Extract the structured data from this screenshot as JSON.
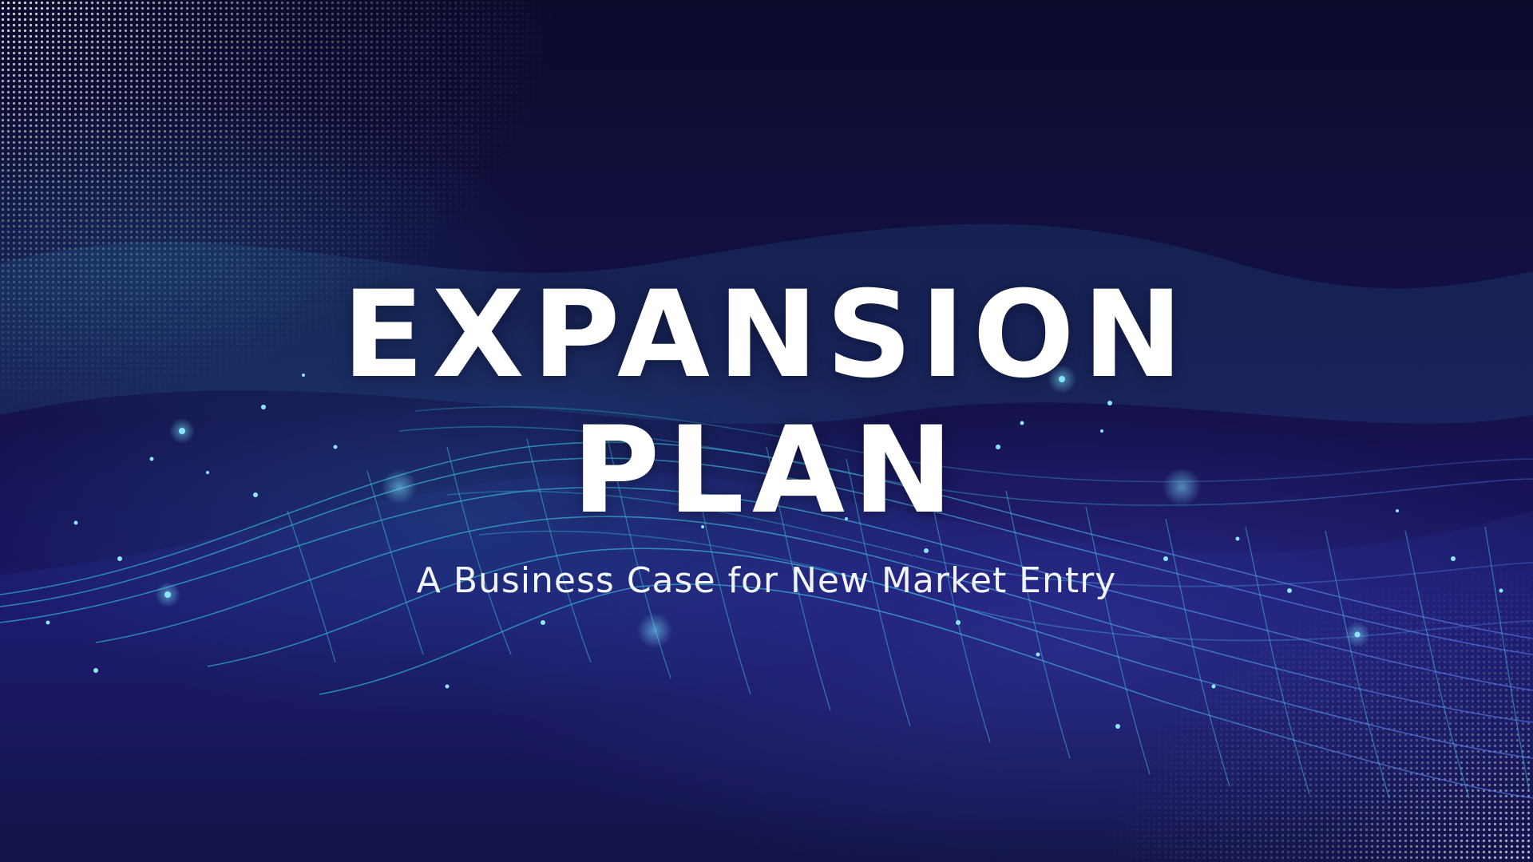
{
  "slide": {
    "title_line_1": "EXPANSION",
    "title_line_2": "PLAN",
    "subtitle": "A Business Case for New Market Entry"
  },
  "colors": {
    "background_dark": "#0c0a2e",
    "background_mid": "#1a1464",
    "wave_cyan": "#3fb6d8",
    "wave_blue": "#4a6fe0",
    "title_text": "#ffffff"
  },
  "decoration": {
    "background_art": "digital-wave-mesh",
    "particles": "glowing-dots"
  }
}
